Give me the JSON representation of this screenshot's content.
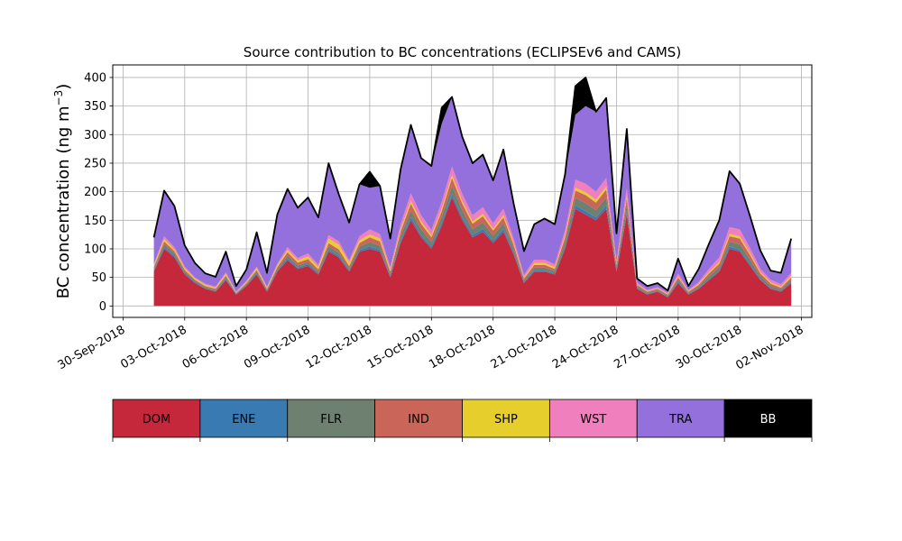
{
  "chart_data": {
    "type": "area",
    "stacked": true,
    "title": "Source contribution to BC concentrations (ECLIPSEv6 and CAMS)",
    "ylabel": "BC concentration (ng m",
    "ylabel_sup": "−3",
    "ylabel_close": ")",
    "xlabel": "",
    "ylim": [
      -20,
      422
    ],
    "xlim": [
      "2018-09-29 12:00",
      "2018-11-02 12:00"
    ],
    "grid": true,
    "yticks": [
      0,
      50,
      100,
      150,
      200,
      250,
      300,
      350,
      400
    ],
    "xticks": [
      "30-Sep-2018",
      "03-Oct-2018",
      "06-Oct-2018",
      "09-Oct-2018",
      "12-Oct-2018",
      "15-Oct-2018",
      "18-Oct-2018",
      "21-Oct-2018",
      "24-Oct-2018",
      "27-Oct-2018",
      "30-Oct-2018",
      "02-Nov-2018"
    ],
    "x": [
      "2018-10-01 12:00",
      "2018-10-02 00:00",
      "2018-10-02 12:00",
      "2018-10-03 00:00",
      "2018-10-03 12:00",
      "2018-10-04 00:00",
      "2018-10-04 12:00",
      "2018-10-05 00:00",
      "2018-10-05 12:00",
      "2018-10-06 00:00",
      "2018-10-06 12:00",
      "2018-10-07 00:00",
      "2018-10-07 12:00",
      "2018-10-08 00:00",
      "2018-10-08 12:00",
      "2018-10-09 00:00",
      "2018-10-09 12:00",
      "2018-10-10 00:00",
      "2018-10-10 12:00",
      "2018-10-11 00:00",
      "2018-10-11 12:00",
      "2018-10-12 00:00",
      "2018-10-12 12:00",
      "2018-10-13 00:00",
      "2018-10-13 12:00",
      "2018-10-14 00:00",
      "2018-10-14 12:00",
      "2018-10-15 00:00",
      "2018-10-15 12:00",
      "2018-10-16 00:00",
      "2018-10-16 12:00",
      "2018-10-17 00:00",
      "2018-10-17 12:00",
      "2018-10-18 00:00",
      "2018-10-18 12:00",
      "2018-10-19 00:00",
      "2018-10-19 12:00",
      "2018-10-20 00:00",
      "2018-10-20 12:00",
      "2018-10-21 00:00",
      "2018-10-21 12:00",
      "2018-10-22 00:00",
      "2018-10-22 12:00",
      "2018-10-23 00:00",
      "2018-10-23 12:00",
      "2018-10-24 00:00",
      "2018-10-24 12:00",
      "2018-10-25 00:00",
      "2018-10-25 12:00",
      "2018-10-26 00:00",
      "2018-10-26 12:00",
      "2018-10-27 00:00",
      "2018-10-27 12:00",
      "2018-10-28 00:00",
      "2018-10-28 12:00",
      "2018-10-29 00:00",
      "2018-10-29 12:00",
      "2018-10-30 00:00",
      "2018-10-30 12:00",
      "2018-10-31 00:00",
      "2018-10-31 12:00",
      "2018-11-01 00:00",
      "2018-11-01 12:00"
    ],
    "series": [
      {
        "name": "DOM",
        "color": "#c4283a",
        "values": [
          60,
          100,
          85,
          55,
          40,
          30,
          25,
          45,
          20,
          35,
          55,
          25,
          60,
          80,
          65,
          70,
          55,
          95,
          85,
          60,
          95,
          100,
          95,
          50,
          110,
          150,
          120,
          100,
          140,
          190,
          150,
          120,
          130,
          110,
          130,
          90,
          40,
          60,
          60,
          55,
          100,
          170,
          160,
          150,
          170,
          60,
          160,
          30,
          20,
          25,
          15,
          40,
          20,
          30,
          45,
          60,
          100,
          95,
          70,
          45,
          30,
          25,
          40
        ]
      },
      {
        "name": "ENE",
        "color": "#3a7ab3",
        "values": [
          2,
          3,
          3,
          2,
          2,
          1,
          1,
          2,
          1,
          1,
          2,
          1,
          2,
          3,
          2,
          3,
          2,
          3,
          3,
          2,
          3,
          4,
          3,
          2,
          4,
          5,
          4,
          4,
          5,
          6,
          5,
          4,
          5,
          4,
          5,
          3,
          2,
          2,
          2,
          2,
          4,
          6,
          6,
          5,
          6,
          2,
          5,
          1,
          1,
          1,
          1,
          2,
          1,
          1,
          2,
          2,
          4,
          3,
          3,
          2,
          1,
          1,
          2
        ]
      },
      {
        "name": "FLR",
        "color": "#6e8070",
        "values": [
          3,
          5,
          4,
          3,
          2,
          2,
          2,
          3,
          1,
          2,
          3,
          2,
          3,
          5,
          4,
          4,
          3,
          6,
          5,
          4,
          6,
          8,
          7,
          4,
          8,
          12,
          10,
          8,
          11,
          14,
          12,
          10,
          11,
          9,
          10,
          7,
          3,
          5,
          5,
          4,
          8,
          13,
          14,
          13,
          14,
          5,
          12,
          3,
          2,
          2,
          2,
          4,
          2,
          3,
          5,
          6,
          9,
          10,
          8,
          5,
          4,
          3,
          4
        ]
      },
      {
        "name": "IND",
        "color": "#c96559",
        "values": [
          3,
          5,
          4,
          3,
          2,
          2,
          2,
          3,
          1,
          2,
          3,
          2,
          3,
          6,
          5,
          5,
          4,
          6,
          6,
          4,
          6,
          8,
          8,
          4,
          8,
          12,
          10,
          8,
          10,
          14,
          12,
          10,
          11,
          9,
          10,
          7,
          3,
          5,
          5,
          4,
          8,
          13,
          14,
          13,
          14,
          5,
          12,
          3,
          2,
          2,
          2,
          4,
          2,
          3,
          5,
          6,
          9,
          10,
          8,
          5,
          4,
          3,
          4
        ]
      },
      {
        "name": "SHP",
        "color": "#e6cf2c",
        "values": [
          3,
          4,
          3,
          3,
          2,
          2,
          2,
          3,
          1,
          2,
          3,
          2,
          3,
          4,
          4,
          5,
          4,
          8,
          8,
          6,
          5,
          5,
          5,
          3,
          4,
          5,
          4,
          4,
          4,
          5,
          4,
          4,
          4,
          3,
          4,
          3,
          2,
          3,
          3,
          3,
          4,
          5,
          5,
          5,
          5,
          2,
          4,
          1,
          1,
          1,
          1,
          2,
          1,
          2,
          2,
          3,
          4,
          4,
          3,
          2,
          2,
          2,
          3
        ]
      },
      {
        "name": "WST",
        "color": "#f07fbd",
        "values": [
          3,
          5,
          4,
          3,
          2,
          2,
          2,
          3,
          1,
          2,
          3,
          2,
          3,
          5,
          4,
          5,
          4,
          6,
          6,
          4,
          7,
          9,
          8,
          5,
          9,
          13,
          11,
          9,
          12,
          15,
          13,
          11,
          12,
          10,
          11,
          8,
          4,
          6,
          6,
          5,
          9,
          14,
          15,
          14,
          15,
          5,
          13,
          3,
          2,
          2,
          2,
          5,
          2,
          3,
          6,
          8,
          12,
          12,
          9,
          6,
          5,
          4,
          5
        ]
      },
      {
        "name": "TRA",
        "color": "#9370db",
        "values": [
          46,
          80,
          72,
          37,
          25,
          18,
          17,
          36,
          10,
          20,
          60,
          24,
          86,
          102,
          88,
          98,
          83,
          126,
          82,
          66,
          91,
          73,
          84,
          50,
          90,
          120,
          100,
          112,
          137,
          122,
          100,
          91,
          92,
          75,
          104,
          61,
          42,
          62,
          72,
          70,
          98,
          114,
          136,
          140,
          140,
          48,
          104,
          7,
          7,
          7,
          4,
          26,
          7,
          23,
          44,
          65,
          98,
          80,
          56,
          32,
          16,
          20,
          60
        ]
      },
      {
        "name": "BB",
        "color": "#000000",
        "values": [
          0,
          0,
          0,
          0,
          0,
          0,
          0,
          0,
          0,
          0,
          0,
          0,
          0,
          0,
          0,
          0,
          0,
          0,
          0,
          0,
          0,
          28,
          0,
          0,
          6,
          0,
          0,
          0,
          28,
          0,
          0,
          0,
          0,
          0,
          0,
          0,
          0,
          0,
          0,
          0,
          0,
          50,
          50,
          0,
          0,
          0,
          0,
          0,
          0,
          0,
          0,
          0,
          0,
          0,
          0,
          0,
          0,
          0,
          0,
          0,
          0,
          0,
          0
        ]
      }
    ]
  }
}
